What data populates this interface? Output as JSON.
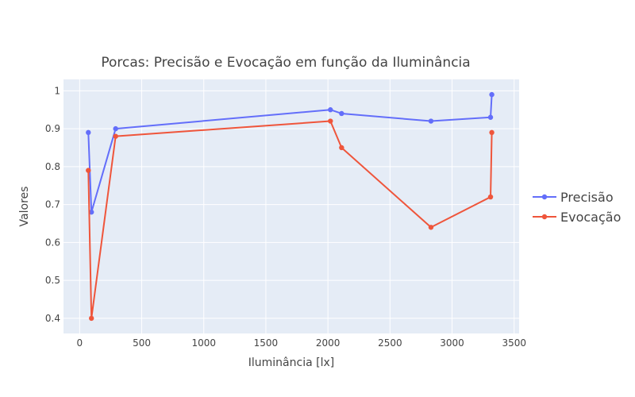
{
  "chart_data": {
    "type": "line",
    "title": "Porcas: Precisão e Evocação em função da Iluminância",
    "xlabel": "Iluminância [lx]",
    "ylabel": "Valores",
    "xlim": [
      -130,
      3540
    ],
    "ylim": [
      0.36,
      1.03
    ],
    "xticks": [
      0,
      500,
      1000,
      1500,
      2000,
      2500,
      3000,
      3500
    ],
    "xtick_labels": [
      "0",
      "500",
      "1000",
      "1500",
      "2000",
      "2500",
      "3000",
      "3500"
    ],
    "yticks": [
      0.4,
      0.5,
      0.6,
      0.7,
      0.8,
      0.9,
      1.0
    ],
    "ytick_labels": [
      "0.4",
      "0.5",
      "0.6",
      "0.7",
      "0.8",
      "0.9",
      "1"
    ],
    "grid": true,
    "legend_position": "right",
    "series": [
      {
        "name": "Precisão",
        "color": "#636efa",
        "x": [
          70,
          95,
          290,
          2020,
          2110,
          2830,
          3310,
          3320
        ],
        "y": [
          0.89,
          0.68,
          0.9,
          0.95,
          0.94,
          0.92,
          0.93,
          0.99
        ]
      },
      {
        "name": "Evocação",
        "color": "#ef553b",
        "x": [
          70,
          95,
          290,
          2020,
          2110,
          2830,
          3310,
          3320
        ],
        "y": [
          0.79,
          0.4,
          0.88,
          0.92,
          0.85,
          0.64,
          0.72,
          0.89
        ]
      }
    ]
  }
}
